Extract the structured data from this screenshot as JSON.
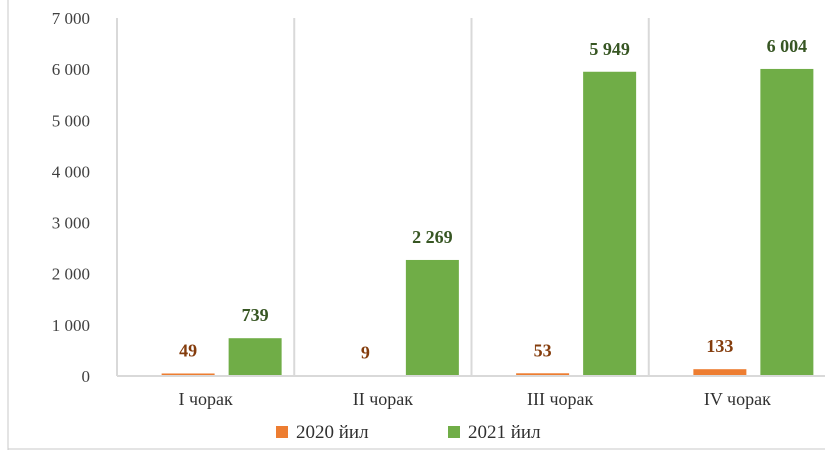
{
  "chart_data": {
    "type": "bar",
    "title": "",
    "xlabel": "",
    "ylabel": "",
    "categories": [
      "I чорак",
      "II чорак",
      "III чорак",
      "IV чорак"
    ],
    "series": [
      {
        "name": "2020 йил",
        "values": [
          49,
          9,
          53,
          133
        ],
        "labels": [
          "49",
          "9",
          "53",
          "133"
        ],
        "color": "#ED7D31",
        "label_color": "#843C0C"
      },
      {
        "name": "2021 йил",
        "values": [
          739,
          2269,
          5949,
          6004
        ],
        "labels": [
          "739",
          "2 269",
          "5 949",
          "6 004"
        ],
        "color": "#70AD47",
        "label_color": "#375623"
      }
    ],
    "ylim": [
      0,
      7000
    ],
    "yticks": [
      {
        "value": 0,
        "label": "0"
      },
      {
        "value": 1000,
        "label": "1 000"
      },
      {
        "value": 2000,
        "label": "2 000"
      },
      {
        "value": 3000,
        "label": "3 000"
      },
      {
        "value": 4000,
        "label": "4 000"
      },
      {
        "value": 5000,
        "label": "5 000"
      },
      {
        "value": 6000,
        "label": "6 000"
      },
      {
        "value": 7000,
        "label": "7 000"
      }
    ],
    "grid": "vertical",
    "legend": "bottom-center"
  }
}
